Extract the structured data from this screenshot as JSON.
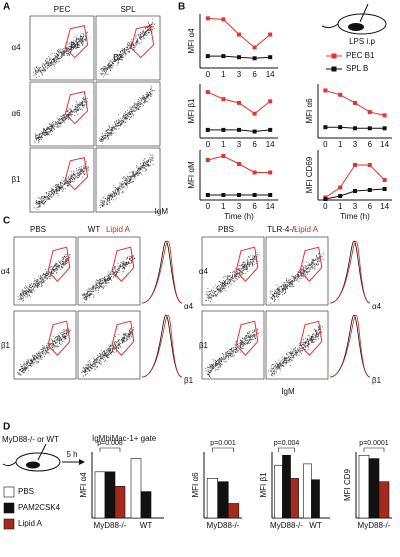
{
  "panel_labels": [
    "A",
    "B",
    "C",
    "D"
  ],
  "flow_a": {
    "columns": [
      "PEC",
      "SPL"
    ],
    "rows": [
      "α4",
      "α6",
      "β1"
    ],
    "gates": [
      "B1",
      "B2"
    ],
    "x_label": "IgM"
  },
  "flow_c": {
    "groups": [
      {
        "genotype": "WT",
        "conditions": [
          "PBS",
          "Lipid A"
        ]
      },
      {
        "genotype": "TLR-4-/-",
        "conditions": [
          "PBS",
          "Lipid A"
        ]
      }
    ],
    "condition_colors": [
      "#111111",
      "#d0281e"
    ],
    "rows": [
      "α4",
      "β1"
    ],
    "x_label": "IgM"
  },
  "inset_b": {
    "label": "LPS i.p",
    "legend": [
      {
        "name": "PEC B1",
        "color": "#e8322e"
      },
      {
        "name": "SPL B",
        "color": "#111111"
      }
    ]
  },
  "inset_d": {
    "label": "MyD88-/- or WT",
    "time": "5 h",
    "gate": "IgMhiMac-1+ gate",
    "legend": [
      {
        "name": "PBS",
        "color": "#ffffff"
      },
      {
        "name": "PAM2CSK4",
        "color": "#111111"
      },
      {
        "name": "Lipid A",
        "color": "#a52a1e"
      }
    ]
  },
  "chart_data": [
    {
      "type": "line",
      "ylabel": "MFI α4",
      "categories": [
        "0",
        "1",
        "3",
        "6",
        "14"
      ],
      "ylim": [
        0,
        100
      ],
      "series": [
        {
          "values": [
            92,
            90,
            62,
            38,
            62
          ]
        },
        {
          "values": [
            22,
            22,
            20,
            18,
            20
          ]
        }
      ]
    },
    {
      "type": "line",
      "ylabel": "MFI β1",
      "categories": [
        "0",
        "1",
        "3",
        "6",
        "14"
      ],
      "ylim": [
        0,
        100
      ],
      "series": [
        {
          "values": [
            85,
            72,
            65,
            45,
            68
          ]
        },
        {
          "values": [
            15,
            15,
            15,
            12,
            15
          ]
        }
      ]
    },
    {
      "type": "line",
      "ylabel": "MFI α6",
      "categories": [
        "0",
        "1",
        "3",
        "6",
        "14"
      ],
      "ylim": [
        0,
        100
      ],
      "series": [
        {
          "values": [
            88,
            80,
            65,
            48,
            42
          ]
        },
        {
          "values": [
            20,
            20,
            18,
            18,
            18
          ]
        }
      ]
    },
    {
      "type": "line",
      "ylabel": "MFI αM",
      "xlabel": "Time (h)",
      "categories": [
        "0",
        "1",
        "3",
        "6",
        "14"
      ],
      "ylim": [
        0,
        100
      ],
      "series": [
        {
          "values": [
            80,
            88,
            72,
            55,
            55
          ]
        },
        {
          "values": [
            10,
            10,
            10,
            10,
            10
          ]
        }
      ]
    },
    {
      "type": "line",
      "ylabel": "MFI CD69",
      "xlabel": "Time (h)",
      "categories": [
        "0",
        "1",
        "3",
        "6",
        "14"
      ],
      "ylim": [
        0,
        100
      ],
      "series": [
        {
          "values": [
            5,
            25,
            70,
            70,
            40
          ]
        },
        {
          "values": [
            2,
            8,
            18,
            20,
            22
          ]
        }
      ]
    },
    {
      "type": "bar",
      "ylabel": "MFI α4",
      "categories": [
        "MyD88-/-",
        "WT"
      ],
      "ylim": [
        0,
        100
      ],
      "annotation": "p=0.008",
      "series": [
        {
          "values": [
            70,
            90
          ]
        },
        {
          "values": [
            70,
            40
          ]
        },
        {
          "values": [
            48,
            null
          ]
        }
      ]
    },
    {
      "type": "bar",
      "ylabel": "MFI α6",
      "categories": [
        "MyD88-/-"
      ],
      "ylim": [
        0,
        100
      ],
      "annotation": "p=0.001",
      "series": [
        {
          "values": [
            60
          ]
        },
        {
          "values": [
            55
          ]
        },
        {
          "values": [
            22
          ]
        }
      ]
    },
    {
      "type": "bar",
      "ylabel": "MFI β1",
      "categories": [
        "MyD88-/-",
        "WT"
      ],
      "ylim": [
        0,
        100
      ],
      "annotation": "p=0.004",
      "series": [
        {
          "values": [
            80,
            82
          ]
        },
        {
          "values": [
            95,
            58
          ]
        },
        {
          "values": [
            60,
            null
          ]
        }
      ]
    },
    {
      "type": "bar",
      "ylabel": "MFI CD9",
      "categories": [
        "MyD88-/-"
      ],
      "ylim": [
        0,
        100
      ],
      "annotation": "p=0.0001",
      "series": [
        {
          "values": [
            95
          ]
        },
        {
          "values": [
            90
          ]
        },
        {
          "values": [
            55
          ]
        }
      ]
    }
  ]
}
